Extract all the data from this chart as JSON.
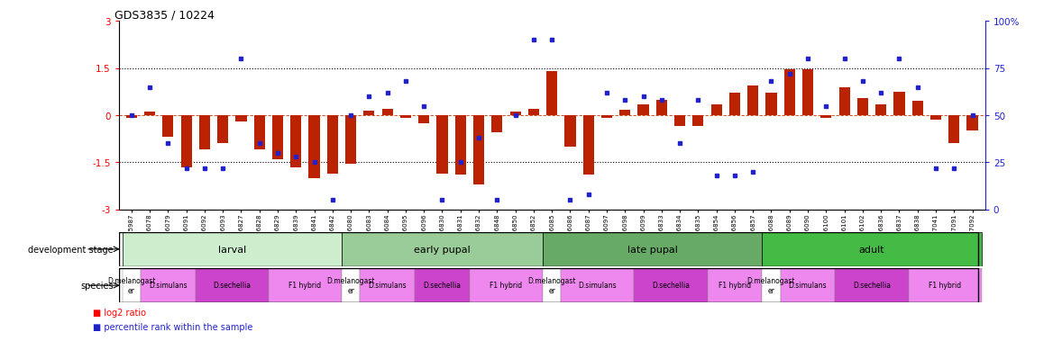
{
  "title": "GDS3835 / 10224",
  "samples": [
    "GSM435987",
    "GSM436078",
    "GSM436079",
    "GSM436091",
    "GSM436092",
    "GSM436093",
    "GSM436827",
    "GSM436828",
    "GSM436829",
    "GSM436839",
    "GSM436841",
    "GSM436842",
    "GSM436080",
    "GSM436083",
    "GSM436084",
    "GSM436095",
    "GSM436096",
    "GSM436830",
    "GSM436831",
    "GSM436832",
    "GSM436848",
    "GSM436850",
    "GSM436852",
    "GSM436085",
    "GSM436086",
    "GSM436087",
    "GSM136097",
    "GSM436098",
    "GSM436099",
    "GSM436833",
    "GSM436834",
    "GSM436835",
    "GSM436854",
    "GSM436856",
    "GSM436857",
    "GSM436088",
    "GSM436089",
    "GSM436090",
    "GSM436100",
    "GSM436101",
    "GSM436102",
    "GSM436836",
    "GSM436837",
    "GSM436838",
    "GSM437041",
    "GSM437091",
    "GSM437092"
  ],
  "log2_ratio": [
    -0.08,
    0.12,
    -0.7,
    -1.65,
    -1.1,
    -0.9,
    -0.2,
    -1.1,
    -1.4,
    -1.65,
    -2.0,
    -1.85,
    -1.55,
    0.15,
    0.2,
    -0.08,
    -0.25,
    -1.85,
    -1.9,
    -2.2,
    -0.55,
    0.12,
    0.2,
    1.4,
    -1.0,
    -1.9,
    -0.08,
    0.18,
    0.35,
    0.5,
    -0.35,
    -0.35,
    0.35,
    0.72,
    0.95,
    0.72,
    1.45,
    1.45,
    -0.08,
    0.9,
    0.55,
    0.35,
    0.75,
    0.45,
    -0.15,
    -0.9,
    -0.5
  ],
  "percentile": [
    50,
    65,
    35,
    22,
    22,
    22,
    80,
    35,
    30,
    28,
    25,
    5,
    50,
    60,
    62,
    68,
    55,
    5,
    25,
    38,
    5,
    50,
    90,
    90,
    5,
    8,
    62,
    58,
    60,
    58,
    35,
    58,
    18,
    18,
    20,
    68,
    72,
    80,
    55,
    80,
    68,
    62,
    80,
    65,
    22,
    22,
    50
  ],
  "dev_stage_groups": [
    {
      "label": "larval",
      "start": 0,
      "end": 11,
      "color": "#cceecc"
    },
    {
      "label": "early pupal",
      "start": 12,
      "end": 22,
      "color": "#99cc99"
    },
    {
      "label": "late pupal",
      "start": 23,
      "end": 34,
      "color": "#66aa66"
    },
    {
      "label": "adult",
      "start": 35,
      "end": 46,
      "color": "#44bb44"
    }
  ],
  "species_groups": [
    {
      "label": "D.melanogast\ner",
      "start": 0,
      "end": 0,
      "color": "#ffffff"
    },
    {
      "label": "D.simulans",
      "start": 1,
      "end": 3,
      "color": "#ee88ee"
    },
    {
      "label": "D.sechellia",
      "start": 4,
      "end": 7,
      "color": "#cc44cc"
    },
    {
      "label": "F1 hybrid",
      "start": 8,
      "end": 11,
      "color": "#ee88ee"
    },
    {
      "label": "D.melanogast\ner",
      "start": 12,
      "end": 12,
      "color": "#ffffff"
    },
    {
      "label": "D.simulans",
      "start": 13,
      "end": 15,
      "color": "#ee88ee"
    },
    {
      "label": "D.sechellia",
      "start": 16,
      "end": 18,
      "color": "#cc44cc"
    },
    {
      "label": "F1 hybrid",
      "start": 19,
      "end": 22,
      "color": "#ee88ee"
    },
    {
      "label": "D.melanogast\ner",
      "start": 23,
      "end": 23,
      "color": "#ffffff"
    },
    {
      "label": "D.simulans",
      "start": 24,
      "end": 27,
      "color": "#ee88ee"
    },
    {
      "label": "D.sechellia",
      "start": 28,
      "end": 31,
      "color": "#cc44cc"
    },
    {
      "label": "F1 hybrid",
      "start": 32,
      "end": 34,
      "color": "#ee88ee"
    },
    {
      "label": "D.melanogast\ner",
      "start": 35,
      "end": 35,
      "color": "#ffffff"
    },
    {
      "label": "D.simulans",
      "start": 36,
      "end": 38,
      "color": "#ee88ee"
    },
    {
      "label": "D.sechellia",
      "start": 39,
      "end": 42,
      "color": "#cc44cc"
    },
    {
      "label": "F1 hybrid",
      "start": 43,
      "end": 46,
      "color": "#ee88ee"
    }
  ],
  "bar_color": "#bb2200",
  "dot_color": "#2222cc",
  "ylim_left": [
    -3,
    3
  ],
  "ylim_right": [
    0,
    100
  ],
  "right_yticks": [
    0,
    25,
    50,
    75,
    100
  ],
  "right_yticklabels": [
    "0",
    "25",
    "50",
    "75",
    "100%"
  ]
}
